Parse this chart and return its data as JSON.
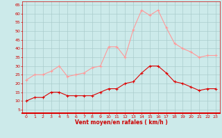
{
  "hours": [
    0,
    1,
    2,
    3,
    4,
    5,
    6,
    7,
    8,
    9,
    10,
    11,
    12,
    13,
    14,
    15,
    16,
    17,
    18,
    19,
    20,
    21,
    22,
    23
  ],
  "wind_avg": [
    10,
    12,
    12,
    15,
    15,
    13,
    13,
    13,
    13,
    15,
    17,
    17,
    20,
    21,
    26,
    30,
    30,
    26,
    21,
    20,
    18,
    16,
    17,
    17
  ],
  "wind_gust": [
    22,
    25,
    25,
    27,
    30,
    24,
    25,
    26,
    29,
    30,
    41,
    41,
    35,
    51,
    62,
    59,
    62,
    52,
    43,
    40,
    38,
    35,
    36,
    36
  ],
  "bg_color": "#cceaea",
  "grid_color": "#aacccc",
  "avg_color": "#dd0000",
  "gust_color": "#ff9999",
  "xlabel": "Vent moyen/en rafales ( km/h )",
  "xlabel_color": "#cc0000",
  "tick_color": "#cc0000",
  "yticks": [
    5,
    10,
    15,
    20,
    25,
    30,
    35,
    40,
    45,
    50,
    55,
    60,
    65
  ],
  "ylim": [
    3,
    67
  ],
  "xlim": [
    -0.5,
    23.5
  ]
}
